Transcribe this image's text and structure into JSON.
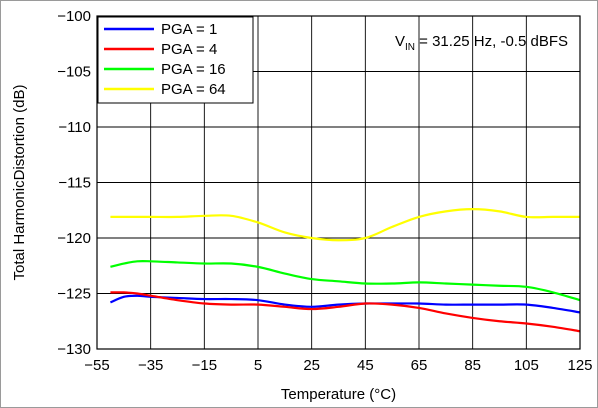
{
  "chart_data": {
    "type": "line",
    "xlabel": "Temperature (°C)",
    "ylabel": "Total HarmonicDistortion (dB)",
    "xlim": [
      -55,
      125
    ],
    "ylim": [
      -130,
      -100
    ],
    "xticks": [
      -55,
      -35,
      -15,
      5,
      25,
      45,
      65,
      85,
      105,
      125
    ],
    "yticks": [
      -100,
      -105,
      -110,
      -115,
      -120,
      -125,
      -130
    ],
    "xtick_labels": [
      "−55",
      "−35",
      "−15",
      "5",
      "25",
      "45",
      "65",
      "85",
      "105",
      "125"
    ],
    "ytick_labels": [
      "−100",
      "−105",
      "−110",
      "−115",
      "−120",
      "−125",
      "−130"
    ],
    "grid": true,
    "legend_position": "top-left",
    "annotation": {
      "prefix": "V",
      "sub": "IN",
      "suffix": " = 31.25 Hz, -0.5 dBFS"
    },
    "series": [
      {
        "name": "PGA = 1",
        "color": "#0000ff",
        "x": [
          -50,
          -45,
          -40,
          -35,
          -25,
          -15,
          -5,
          5,
          15,
          25,
          35,
          45,
          55,
          65,
          75,
          85,
          95,
          105,
          115,
          125
        ],
        "y": [
          -125.8,
          -125.3,
          -125.2,
          -125.3,
          -125.4,
          -125.5,
          -125.5,
          -125.6,
          -126.0,
          -126.2,
          -126.0,
          -125.9,
          -125.9,
          -125.9,
          -126.0,
          -126.0,
          -126.0,
          -126.0,
          -126.3,
          -126.7
        ]
      },
      {
        "name": "PGA = 4",
        "color": "#ff0000",
        "x": [
          -50,
          -45,
          -40,
          -35,
          -25,
          -15,
          -5,
          5,
          15,
          25,
          35,
          45,
          55,
          65,
          75,
          85,
          95,
          105,
          115,
          125
        ],
        "y": [
          -124.9,
          -124.9,
          -125.0,
          -125.2,
          -125.6,
          -125.9,
          -126.0,
          -126.0,
          -126.2,
          -126.4,
          -126.2,
          -125.9,
          -126.0,
          -126.3,
          -126.8,
          -127.2,
          -127.5,
          -127.7,
          -128.0,
          -128.4
        ]
      },
      {
        "name": "PGA = 16",
        "color": "#00ff00",
        "x": [
          -50,
          -45,
          -40,
          -35,
          -25,
          -15,
          -5,
          5,
          15,
          25,
          35,
          45,
          55,
          65,
          75,
          85,
          95,
          105,
          115,
          125
        ],
        "y": [
          -122.6,
          -122.3,
          -122.1,
          -122.1,
          -122.2,
          -122.3,
          -122.3,
          -122.6,
          -123.2,
          -123.7,
          -123.9,
          -124.1,
          -124.1,
          -124.0,
          -124.1,
          -124.2,
          -124.3,
          -124.4,
          -124.9,
          -125.6
        ]
      },
      {
        "name": "PGA = 64",
        "color": "#ffff00",
        "x": [
          -50,
          -45,
          -35,
          -25,
          -15,
          -5,
          5,
          15,
          25,
          35,
          45,
          55,
          65,
          75,
          85,
          95,
          105,
          115,
          125
        ],
        "y": [
          -118.1,
          -118.1,
          -118.1,
          -118.1,
          -118.0,
          -118.0,
          -118.6,
          -119.5,
          -120.0,
          -120.2,
          -120.0,
          -119.0,
          -118.1,
          -117.6,
          -117.4,
          -117.6,
          -118.1,
          -118.1,
          -118.1
        ]
      }
    ]
  }
}
